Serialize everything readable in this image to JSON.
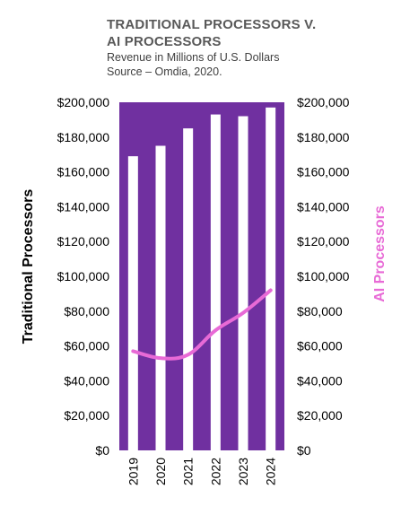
{
  "colors": {
    "plot_background": "#7030A0",
    "bars": "#FFFFFF",
    "ai_line": "#E86AD6",
    "left_axis_label": "#000000",
    "right_axis_label": "#E86AD6"
  },
  "chart_data": {
    "type": "bar",
    "title": [
      "TRADITIONAL PROCESSORS V.",
      "AI PROCESSORS"
    ],
    "subtitle": [
      "Revenue in Millions of U.S. Dollars",
      "Source – Omdia, 2020."
    ],
    "categories": [
      "2019",
      "2020",
      "2021",
      "2022",
      "2023",
      "2024"
    ],
    "series": [
      {
        "name": "Traditional Processors",
        "type": "bar",
        "axis": "left",
        "values": [
          169000,
          175000,
          185000,
          193000,
          192000,
          197000
        ]
      },
      {
        "name": "AI Processors",
        "type": "line",
        "axis": "right",
        "values": [
          57000,
          53000,
          55000,
          69000,
          79000,
          92000
        ]
      }
    ],
    "ylabel_left": "Traditional Processors",
    "ylabel_right": "AI Processors",
    "ylim": [
      0,
      200000
    ],
    "y_ticks": [
      "$0",
      "$20,000",
      "$40,000",
      "$60,000",
      "$80,000",
      "$100,000",
      "$120,000",
      "$140,000",
      "$160,000",
      "$180,000",
      "$200,000"
    ],
    "y_tick_values": [
      0,
      20000,
      40000,
      60000,
      80000,
      100000,
      120000,
      140000,
      160000,
      180000,
      200000
    ],
    "grid": false
  }
}
